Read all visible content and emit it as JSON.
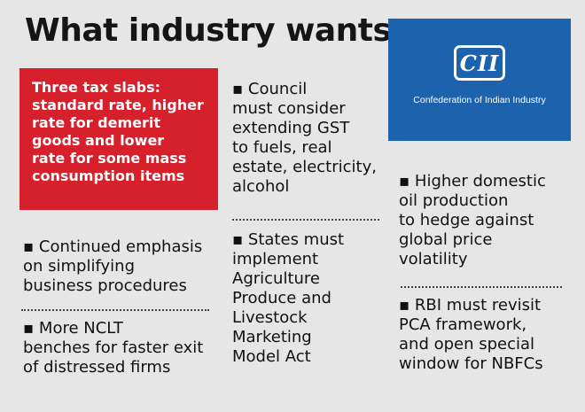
{
  "title": "What industry wants",
  "highlight": "Three tax slabs:\nstandard rate,  higher\nrate for demerit\ngoods and  lower\nrate for some mass\nconsumption items",
  "logo": {
    "mark": "CII",
    "subtitle": "Confederation of Indian Industry"
  },
  "items": {
    "left_1": "▪ Continued emphasis\non simplifying\nbusiness procedures",
    "left_2": "▪ More NCLT\nbenches for faster exit\nof distressed firms",
    "mid_1": "▪ Council\nmust consider\nextending GST\nto  fuels, real\nestate, electricity,\nalcohol",
    "mid_2": "▪ States must\nimplement\nAgriculture\nProduce and\nLivestock\nMarketing\nModel Act",
    "right_1": "▪ Higher domestic\noil production\nto  hedge against\nglobal price\nvolatility",
    "right_2": "▪ RBI must revisit\nPCA framework,\nand open special\nwindow for NBFCs"
  }
}
